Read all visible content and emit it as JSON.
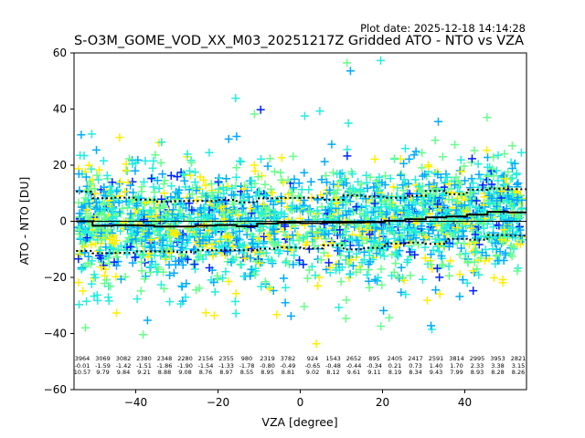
{
  "chart_data": {
    "type": "scatter",
    "plot_date": "Plot date: 2025-12-18 14:14:28",
    "title": "S-O3M_GOME_VOD_XX_M03_20251217Z Gridded ATO - NTO vs VZA",
    "xlabel": "VZA [degree]",
    "ylabel": "ATO - NTO [DU]",
    "xlim": [
      -55,
      55
    ],
    "ylim": [
      -60,
      60
    ],
    "xticks": [
      -40,
      -20,
      0,
      20,
      40
    ],
    "yticks": [
      -60,
      -40,
      -20,
      0,
      20,
      40,
      60
    ],
    "marker": "+",
    "colormap": [
      "#0022ff",
      "#00aaff",
      "#22eedd",
      "#66ff88",
      "#ffee00"
    ],
    "reference_line_y": 0,
    "bins": {
      "vza": [
        -53,
        -48,
        -43,
        -38,
        -33,
        -28,
        -23,
        -18,
        -13,
        -8,
        -3,
        3,
        8,
        13,
        18,
        23,
        28,
        33,
        38,
        43,
        48,
        53
      ],
      "count": [
        3964,
        3069,
        3082,
        2380,
        2348,
        2280,
        2156,
        2355,
        980,
        2319,
        3782,
        924,
        1543,
        2652,
        895,
        2405,
        2417,
        2591,
        3814,
        2995,
        3953,
        2821
      ],
      "mean": [
        -0.01,
        -1.59,
        -1.42,
        -1.51,
        -1.86,
        -1.9,
        -1.54,
        -1.33,
        -1.78,
        -0.8,
        -0.49,
        -0.65,
        -0.48,
        -0.44,
        -0.34,
        0.21,
        0.73,
        1.4,
        1.7,
        2.33,
        3.38,
        3.15
      ],
      "std": [
        10.57,
        9.79,
        9.84,
        9.21,
        8.88,
        9.08,
        8.76,
        8.97,
        8.55,
        8.95,
        8.81,
        9.02,
        8.12,
        9.61,
        9.11,
        8.19,
        8.34,
        9.43,
        7.99,
        8.93,
        8.28,
        8.26
      ]
    }
  }
}
